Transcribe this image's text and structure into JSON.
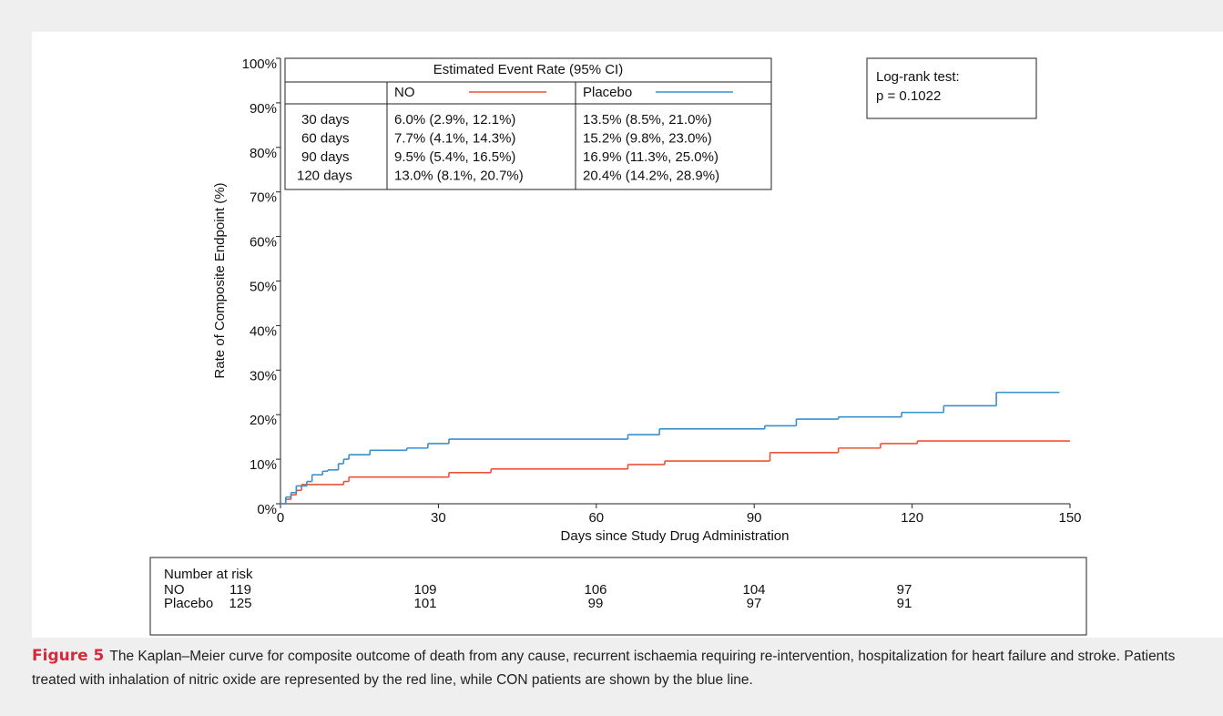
{
  "chart_data": {
    "type": "step",
    "y_label": "Rate of Composite Endpoint (%)",
    "x_label": "Days since Study Drug Administration",
    "xlim": [
      0,
      150
    ],
    "xticks": [
      0,
      30,
      60,
      90,
      120,
      150
    ],
    "ylim": [
      0,
      100
    ],
    "yticks": [
      {
        "value": 0,
        "label": "0%"
      },
      {
        "value": 10,
        "label": "10%"
      },
      {
        "value": 20,
        "label": "20%"
      },
      {
        "value": 30,
        "label": "30%"
      },
      {
        "value": 40,
        "label": "40%"
      },
      {
        "value": 50,
        "label": "50%"
      },
      {
        "value": 60,
        "label": "60%"
      },
      {
        "value": 70,
        "label": "70%"
      },
      {
        "value": 80,
        "label": "80%"
      },
      {
        "value": 90,
        "label": "90%"
      },
      {
        "value": 100,
        "label": "100%"
      }
    ],
    "series": [
      {
        "name": "NO",
        "color": "#e8553a",
        "x": [
          0,
          1,
          2,
          3,
          4,
          12,
          13,
          32,
          40,
          66,
          73,
          93,
          106,
          114,
          121,
          150
        ],
        "values": [
          0,
          1,
          2,
          3,
          4.3,
          5,
          6,
          7,
          7.8,
          8.8,
          9.6,
          11.5,
          12.5,
          13.5,
          14.1,
          14.1
        ]
      },
      {
        "name": "Placebo",
        "color": "#3a8fcd",
        "x": [
          0,
          1,
          2,
          3,
          5,
          6,
          8,
          9,
          11,
          12,
          13,
          17,
          24,
          28,
          32,
          66,
          72,
          92,
          98,
          106,
          118,
          126,
          136,
          148
        ],
        "values": [
          0,
          1.5,
          2.5,
          4,
          5,
          6.5,
          7.3,
          7.6,
          9,
          10,
          11,
          12,
          12.5,
          13.5,
          14.5,
          15.5,
          16.8,
          17.5,
          19,
          19.5,
          20.5,
          22,
          25,
          25
        ]
      }
    ],
    "event_table": {
      "title": "Estimated Event Rate (95% CI)",
      "rows": [
        [
          "30 days",
          "6.0% (2.9%, 12.1%)",
          "13.5% (8.5%, 21.0%)"
        ],
        [
          "60 days",
          "7.7% (4.1%, 14.3%)",
          "15.2% (9.8%, 23.0%)"
        ],
        [
          "90 days",
          "9.5% (5.4%, 16.5%)",
          "16.9% (11.3%, 25.0%)"
        ],
        [
          "120 days",
          "13.0% (8.1%, 20.7%)",
          "20.4% (14.2%, 28.9%)"
        ]
      ]
    },
    "annotation": [
      "Log-rank test:",
      "p = 0.1022"
    ],
    "risk_table": {
      "title": "Number at risk",
      "rows": [
        {
          "label": "NO",
          "values": [
            119,
            109,
            106,
            104,
            97
          ]
        },
        {
          "label": "Placebo",
          "values": [
            125,
            101,
            99,
            97,
            91
          ]
        }
      ]
    }
  },
  "caption": {
    "label": "Figure 5",
    "text": "The Kaplan–Meier curve for composite outcome of death from any cause, recurrent ischaemia requiring re-intervention, hospitalization for heart failure and stroke. Patients treated with inhalation of nitric oxide are represented by the red line, while CON patients are shown by the blue line."
  }
}
